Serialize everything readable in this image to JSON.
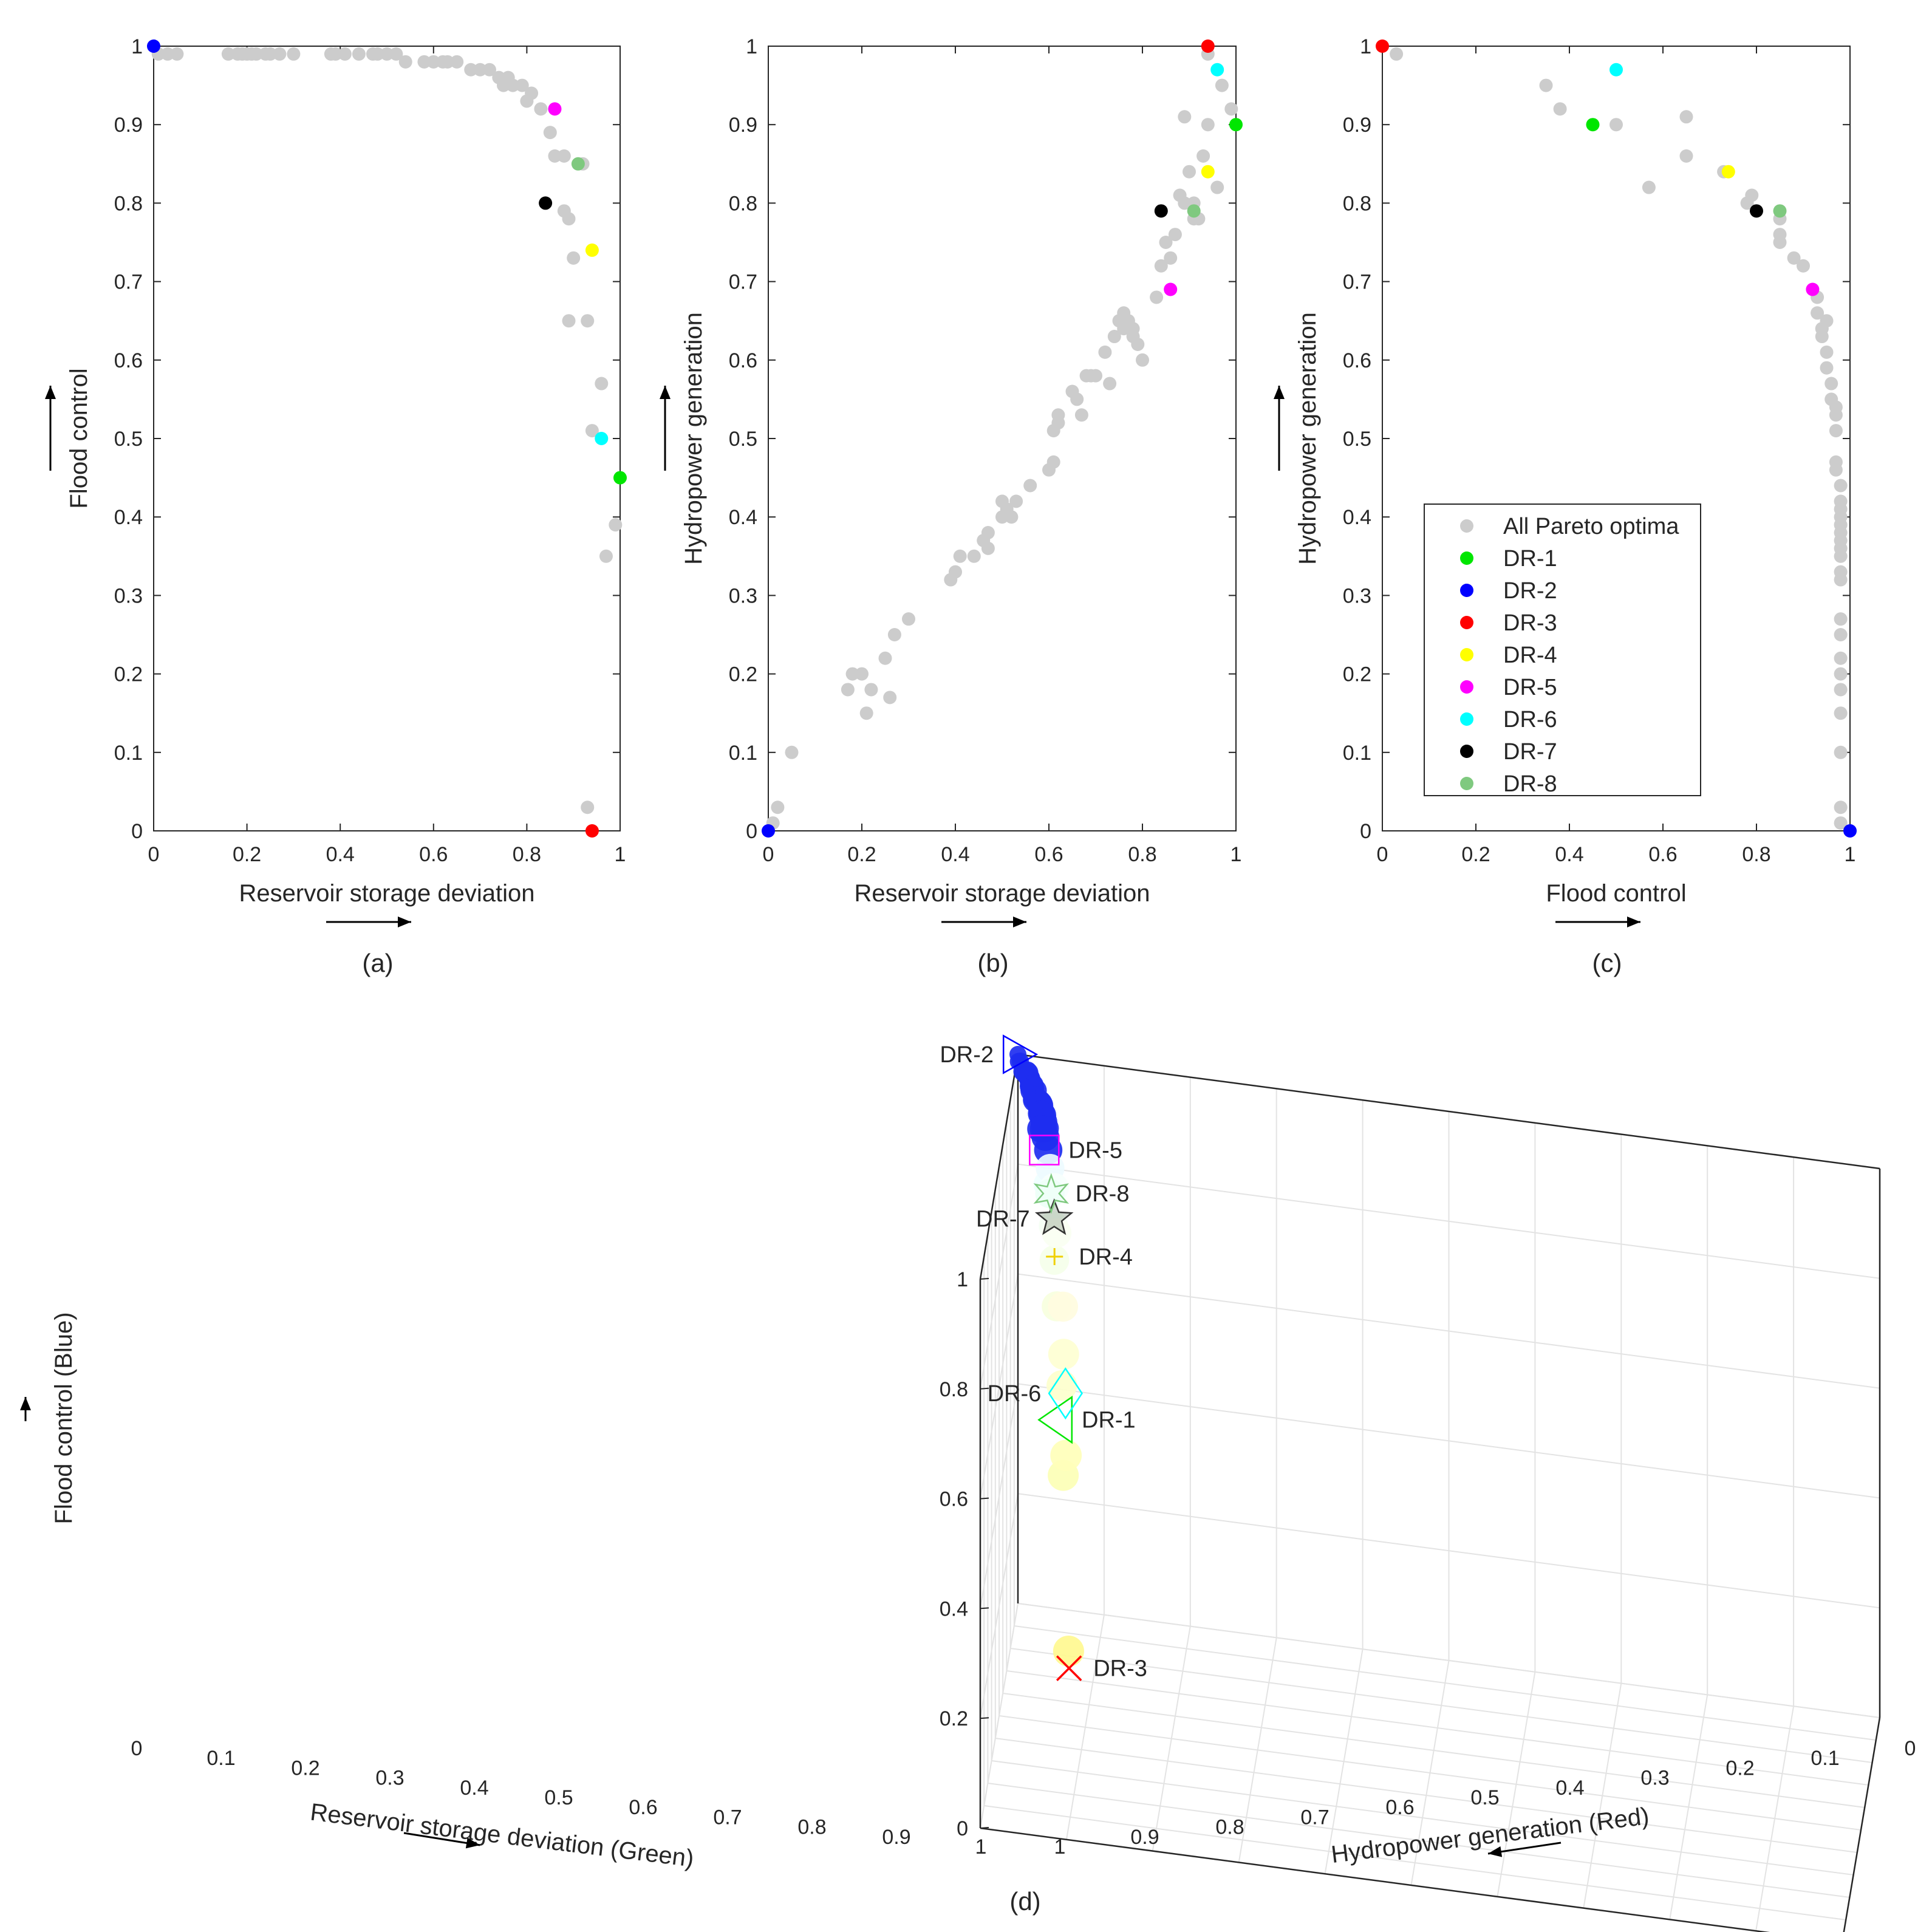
{
  "colors": {
    "pareto": "#cccccc",
    "DR-1": "#00e600",
    "DR-2": "#0000ff",
    "DR-3": "#ff0000",
    "DR-4": "#ffff00",
    "DR-5": "#ff00ff",
    "DR-6": "#00ffff",
    "DR-7": "#000000",
    "DR-8": "#7fc97f"
  },
  "legend": {
    "entries": [
      "All Pareto optima",
      "DR-1",
      "DR-2",
      "DR-3",
      "DR-4",
      "DR-5",
      "DR-6",
      "DR-7",
      "DR-8"
    ]
  },
  "chart_data": [
    {
      "panel": "(a)",
      "type": "scatter",
      "xlabel": "Reservoir storage deviation",
      "ylabel": "Flood control",
      "xlim": [
        0,
        1
      ],
      "ylim": [
        0,
        1
      ],
      "xticks": [
        "0",
        "0.2",
        "0.4",
        "0.6",
        "0.8",
        "1"
      ],
      "yticks": [
        "0",
        "0.1",
        "0.2",
        "0.3",
        "0.4",
        "0.5",
        "0.6",
        "0.7",
        "0.8",
        "0.9",
        "1"
      ],
      "grid": false,
      "pareto_points": [
        [
          0.01,
          0.99
        ],
        [
          0.03,
          0.99
        ],
        [
          0.05,
          0.99
        ],
        [
          0.16,
          0.99
        ],
        [
          0.18,
          0.99
        ],
        [
          0.19,
          0.99
        ],
        [
          0.2,
          0.99
        ],
        [
          0.21,
          0.99
        ],
        [
          0.22,
          0.99
        ],
        [
          0.24,
          0.99
        ],
        [
          0.25,
          0.99
        ],
        [
          0.27,
          0.99
        ],
        [
          0.3,
          0.99
        ],
        [
          0.38,
          0.99
        ],
        [
          0.39,
          0.99
        ],
        [
          0.41,
          0.99
        ],
        [
          0.44,
          0.99
        ],
        [
          0.47,
          0.99
        ],
        [
          0.48,
          0.99
        ],
        [
          0.5,
          0.99
        ],
        [
          0.52,
          0.99
        ],
        [
          0.54,
          0.98
        ],
        [
          0.58,
          0.98
        ],
        [
          0.6,
          0.98
        ],
        [
          0.62,
          0.98
        ],
        [
          0.63,
          0.98
        ],
        [
          0.65,
          0.98
        ],
        [
          0.68,
          0.97
        ],
        [
          0.7,
          0.97
        ],
        [
          0.72,
          0.97
        ],
        [
          0.74,
          0.96
        ],
        [
          0.75,
          0.95
        ],
        [
          0.76,
          0.96
        ],
        [
          0.77,
          0.95
        ],
        [
          0.79,
          0.95
        ],
        [
          0.81,
          0.94
        ],
        [
          0.8,
          0.93
        ],
        [
          0.83,
          0.92
        ],
        [
          0.85,
          0.89
        ],
        [
          0.86,
          0.86
        ],
        [
          0.88,
          0.86
        ],
        [
          0.92,
          0.85
        ],
        [
          0.88,
          0.79
        ],
        [
          0.89,
          0.78
        ],
        [
          0.9,
          0.73
        ],
        [
          0.89,
          0.65
        ],
        [
          0.93,
          0.65
        ],
        [
          0.96,
          0.57
        ],
        [
          0.94,
          0.51
        ],
        [
          0.99,
          0.39
        ],
        [
          0.97,
          0.35
        ],
        [
          0.93,
          0.03
        ]
      ],
      "highlights": [
        {
          "name": "DR-1",
          "x": 1.0,
          "y": 0.45
        },
        {
          "name": "DR-2",
          "x": 0.0,
          "y": 1.0
        },
        {
          "name": "DR-3",
          "x": 0.94,
          "y": 0.0
        },
        {
          "name": "DR-4",
          "x": 0.94,
          "y": 0.74
        },
        {
          "name": "DR-5",
          "x": 0.86,
          "y": 0.92
        },
        {
          "name": "DR-6",
          "x": 0.96,
          "y": 0.5
        },
        {
          "name": "DR-7",
          "x": 0.84,
          "y": 0.8
        },
        {
          "name": "DR-8",
          "x": 0.91,
          "y": 0.85
        }
      ]
    },
    {
      "panel": "(b)",
      "type": "scatter",
      "xlabel": "Reservoir storage deviation",
      "ylabel": "Hydropower generation",
      "xlim": [
        0,
        1
      ],
      "ylim": [
        0,
        1
      ],
      "xticks": [
        "0",
        "0.2",
        "0.4",
        "0.6",
        "0.8",
        "1"
      ],
      "yticks": [
        "0",
        "0.1",
        "0.2",
        "0.3",
        "0.4",
        "0.5",
        "0.6",
        "0.7",
        "0.8",
        "0.9",
        "1"
      ],
      "grid": false,
      "pareto_points": [
        [
          0.01,
          0.01
        ],
        [
          0.02,
          0.03
        ],
        [
          0.05,
          0.1
        ],
        [
          0.17,
          0.18
        ],
        [
          0.18,
          0.2
        ],
        [
          0.2,
          0.2
        ],
        [
          0.21,
          0.15
        ],
        [
          0.22,
          0.18
        ],
        [
          0.25,
          0.22
        ],
        [
          0.26,
          0.17
        ],
        [
          0.27,
          0.25
        ],
        [
          0.3,
          0.27
        ],
        [
          0.39,
          0.32
        ],
        [
          0.4,
          0.33
        ],
        [
          0.41,
          0.35
        ],
        [
          0.44,
          0.35
        ],
        [
          0.46,
          0.37
        ],
        [
          0.47,
          0.38
        ],
        [
          0.47,
          0.36
        ],
        [
          0.5,
          0.42
        ],
        [
          0.5,
          0.4
        ],
        [
          0.51,
          0.41
        ],
        [
          0.52,
          0.4
        ],
        [
          0.53,
          0.42
        ],
        [
          0.56,
          0.44
        ],
        [
          0.6,
          0.46
        ],
        [
          0.61,
          0.47
        ],
        [
          0.61,
          0.51
        ],
        [
          0.62,
          0.52
        ],
        [
          0.62,
          0.53
        ],
        [
          0.65,
          0.56
        ],
        [
          0.66,
          0.55
        ],
        [
          0.67,
          0.53
        ],
        [
          0.68,
          0.58
        ],
        [
          0.69,
          0.58
        ],
        [
          0.7,
          0.58
        ],
        [
          0.72,
          0.61
        ],
        [
          0.73,
          0.57
        ],
        [
          0.74,
          0.63
        ],
        [
          0.75,
          0.65
        ],
        [
          0.76,
          0.66
        ],
        [
          0.76,
          0.64
        ],
        [
          0.77,
          0.65
        ],
        [
          0.78,
          0.63
        ],
        [
          0.78,
          0.64
        ],
        [
          0.79,
          0.62
        ],
        [
          0.8,
          0.6
        ],
        [
          0.83,
          0.68
        ],
        [
          0.84,
          0.72
        ],
        [
          0.85,
          0.75
        ],
        [
          0.86,
          0.73
        ],
        [
          0.87,
          0.76
        ],
        [
          0.88,
          0.81
        ],
        [
          0.89,
          0.8
        ],
        [
          0.9,
          0.84
        ],
        [
          0.91,
          0.8
        ],
        [
          0.91,
          0.78
        ],
        [
          0.92,
          0.78
        ],
        [
          0.93,
          0.86
        ],
        [
          0.94,
          0.9
        ],
        [
          0.96,
          0.82
        ],
        [
          0.97,
          0.95
        ],
        [
          0.99,
          0.92
        ],
        [
          0.94,
          0.99
        ],
        [
          0.89,
          0.91
        ]
      ],
      "highlights": [
        {
          "name": "DR-1",
          "x": 1.0,
          "y": 0.9
        },
        {
          "name": "DR-2",
          "x": 0.0,
          "y": 0.0
        },
        {
          "name": "DR-3",
          "x": 0.94,
          "y": 1.0
        },
        {
          "name": "DR-4",
          "x": 0.94,
          "y": 0.84
        },
        {
          "name": "DR-5",
          "x": 0.86,
          "y": 0.69
        },
        {
          "name": "DR-6",
          "x": 0.96,
          "y": 0.97
        },
        {
          "name": "DR-7",
          "x": 0.84,
          "y": 0.79
        },
        {
          "name": "DR-8",
          "x": 0.91,
          "y": 0.79
        }
      ]
    },
    {
      "panel": "(c)",
      "type": "scatter",
      "xlabel": "Flood control",
      "ylabel": "Hydropower generation",
      "xlim": [
        0,
        1
      ],
      "ylim": [
        0,
        1
      ],
      "xticks": [
        "0",
        "0.2",
        "0.4",
        "0.6",
        "0.8",
        "1"
      ],
      "yticks": [
        "0",
        "0.1",
        "0.2",
        "0.3",
        "0.4",
        "0.5",
        "0.6",
        "0.7",
        "0.8",
        "0.9",
        "1"
      ],
      "grid": false,
      "legend_position": "bottom-left",
      "pareto_points": [
        [
          0.03,
          0.99
        ],
        [
          0.35,
          0.95
        ],
        [
          0.38,
          0.92
        ],
        [
          0.5,
          0.9
        ],
        [
          0.57,
          0.82
        ],
        [
          0.65,
          0.91
        ],
        [
          0.65,
          0.86
        ],
        [
          0.73,
          0.84
        ],
        [
          0.78,
          0.8
        ],
        [
          0.79,
          0.81
        ],
        [
          0.85,
          0.78
        ],
        [
          0.85,
          0.76
        ],
        [
          0.85,
          0.75
        ],
        [
          0.88,
          0.73
        ],
        [
          0.9,
          0.72
        ],
        [
          0.93,
          0.68
        ],
        [
          0.93,
          0.66
        ],
        [
          0.94,
          0.64
        ],
        [
          0.94,
          0.63
        ],
        [
          0.95,
          0.65
        ],
        [
          0.95,
          0.61
        ],
        [
          0.95,
          0.59
        ],
        [
          0.96,
          0.57
        ],
        [
          0.96,
          0.55
        ],
        [
          0.97,
          0.54
        ],
        [
          0.97,
          0.53
        ],
        [
          0.97,
          0.51
        ],
        [
          0.97,
          0.47
        ],
        [
          0.97,
          0.46
        ],
        [
          0.98,
          0.44
        ],
        [
          0.98,
          0.42
        ],
        [
          0.98,
          0.41
        ],
        [
          0.98,
          0.4
        ],
        [
          0.98,
          0.39
        ],
        [
          0.98,
          0.38
        ],
        [
          0.98,
          0.37
        ],
        [
          0.98,
          0.36
        ],
        [
          0.98,
          0.35
        ],
        [
          0.98,
          0.33
        ],
        [
          0.98,
          0.32
        ],
        [
          0.98,
          0.27
        ],
        [
          0.98,
          0.25
        ],
        [
          0.98,
          0.22
        ],
        [
          0.98,
          0.2
        ],
        [
          0.98,
          0.18
        ],
        [
          0.98,
          0.15
        ],
        [
          0.98,
          0.1
        ],
        [
          0.98,
          0.03
        ],
        [
          0.98,
          0.01
        ],
        [
          0.94,
          0.64
        ]
      ],
      "highlights": [
        {
          "name": "DR-1",
          "x": 0.45,
          "y": 0.9
        },
        {
          "name": "DR-2",
          "x": 1.0,
          "y": 0.0
        },
        {
          "name": "DR-3",
          "x": 0.0,
          "y": 1.0
        },
        {
          "name": "DR-4",
          "x": 0.74,
          "y": 0.84
        },
        {
          "name": "DR-5",
          "x": 0.92,
          "y": 0.69
        },
        {
          "name": "DR-6",
          "x": 0.5,
          "y": 0.97
        },
        {
          "name": "DR-7",
          "x": 0.8,
          "y": 0.79
        },
        {
          "name": "DR-8",
          "x": 0.85,
          "y": 0.79
        }
      ]
    },
    {
      "panel": "(d)",
      "type": "scatter3d",
      "xlabel": "Reservoir storage deviation (Green)",
      "ylabel": "Hydropower generation (Red)",
      "zlabel": "Flood control (Blue)",
      "xlim": [
        0,
        1
      ],
      "ylim": [
        0,
        1
      ],
      "zlim": [
        0,
        1
      ],
      "xticks": [
        "0",
        "0.1",
        "0.2",
        "0.3",
        "0.4",
        "0.5",
        "0.6",
        "0.7",
        "0.8",
        "0.9",
        "1"
      ],
      "yticks": [
        "0",
        "0.1",
        "0.2",
        "0.3",
        "0.4",
        "0.5",
        "0.6",
        "0.7",
        "0.8",
        "0.9",
        "1"
      ],
      "zticks": [
        "0",
        "0.2",
        "0.4",
        "0.6",
        "0.8",
        "1"
      ],
      "grid": true,
      "points": [
        [
          0.0,
          0.0,
          1.0
        ],
        [
          0.01,
          0.03,
          0.99
        ],
        [
          0.03,
          0.02,
          0.99
        ],
        [
          0.16,
          0.18,
          0.99
        ],
        [
          0.18,
          0.2,
          0.99
        ],
        [
          0.2,
          0.15,
          0.99
        ],
        [
          0.22,
          0.18,
          0.99
        ],
        [
          0.25,
          0.22,
          0.99
        ],
        [
          0.27,
          0.25,
          0.99
        ],
        [
          0.3,
          0.27,
          0.99
        ],
        [
          0.38,
          0.32,
          0.99
        ],
        [
          0.41,
          0.35,
          0.99
        ],
        [
          0.44,
          0.35,
          0.99
        ],
        [
          0.47,
          0.38,
          0.99
        ],
        [
          0.5,
          0.42,
          0.99
        ],
        [
          0.52,
          0.4,
          0.99
        ],
        [
          0.54,
          0.44,
          0.98
        ],
        [
          0.58,
          0.46,
          0.98
        ],
        [
          0.6,
          0.51,
          0.98
        ],
        [
          0.62,
          0.53,
          0.98
        ],
        [
          0.65,
          0.55,
          0.98
        ],
        [
          0.68,
          0.58,
          0.97
        ],
        [
          0.7,
          0.58,
          0.97
        ],
        [
          0.72,
          0.61,
          0.97
        ],
        [
          0.74,
          0.63,
          0.96
        ],
        [
          0.75,
          0.65,
          0.95
        ],
        [
          0.77,
          0.64,
          0.95
        ],
        [
          0.79,
          0.62,
          0.95
        ],
        [
          0.81,
          0.68,
          0.94
        ],
        [
          0.83,
          0.72,
          0.92
        ],
        [
          0.85,
          0.75,
          0.89
        ],
        [
          0.86,
          0.73,
          0.86
        ],
        [
          0.88,
          0.81,
          0.86
        ],
        [
          0.92,
          0.78,
          0.85
        ],
        [
          0.88,
          0.8,
          0.79
        ],
        [
          0.89,
          0.84,
          0.78
        ],
        [
          0.9,
          0.82,
          0.73
        ],
        [
          0.89,
          0.91,
          0.65
        ],
        [
          0.93,
          0.86,
          0.65
        ],
        [
          0.96,
          0.95,
          0.57
        ],
        [
          0.94,
          0.92,
          0.51
        ],
        [
          0.99,
          0.99,
          0.39
        ],
        [
          0.97,
          0.95,
          0.35
        ],
        [
          0.93,
          0.99,
          0.03
        ]
      ],
      "highlights": [
        {
          "name": "DR-1",
          "x": 1.0,
          "y": 0.9,
          "z": 0.45,
          "marker": "triangle-left"
        },
        {
          "name": "DR-2",
          "x": 0.0,
          "y": 0.0,
          "z": 1.0,
          "marker": "triangle-right"
        },
        {
          "name": "DR-3",
          "x": 0.94,
          "y": 1.0,
          "z": 0.0,
          "marker": "x"
        },
        {
          "name": "DR-4",
          "x": 0.94,
          "y": 0.84,
          "z": 0.74,
          "marker": "plus"
        },
        {
          "name": "DR-5",
          "x": 0.86,
          "y": 0.69,
          "z": 0.92,
          "marker": "square"
        },
        {
          "name": "DR-6",
          "x": 0.96,
          "y": 0.97,
          "z": 0.5,
          "marker": "diamond"
        },
        {
          "name": "DR-7",
          "x": 0.84,
          "y": 0.79,
          "z": 0.8,
          "marker": "pentagram"
        },
        {
          "name": "DR-8",
          "x": 0.91,
          "y": 0.79,
          "z": 0.85,
          "marker": "hexagram"
        }
      ]
    }
  ]
}
